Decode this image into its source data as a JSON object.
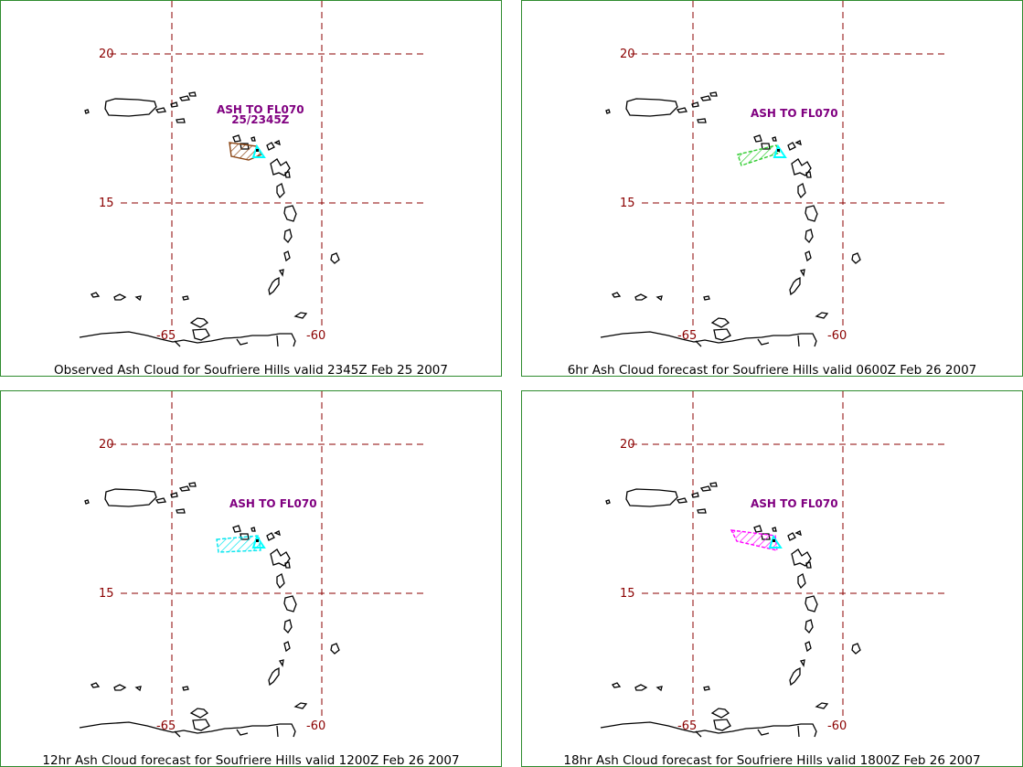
{
  "panels": [
    {
      "caption": "Observed Ash Cloud for Soufriere  Hills valid 2345Z Feb 25 2007",
      "annotation": [
        "ASH TO FL070",
        "25/2345Z"
      ],
      "cloud_color": "#8b4513"
    },
    {
      "caption": "6hr Ash Cloud forecast for Soufriere  Hills valid 0600Z Feb 26 2007",
      "annotation": [
        "ASH TO FL070"
      ],
      "cloud_color": "#32cd32"
    },
    {
      "caption": "12hr Ash Cloud forecast for Soufriere  Hills valid 1200Z Feb 26 2007",
      "annotation": [
        "ASH TO FL070"
      ],
      "cloud_color": "#00e5ee"
    },
    {
      "caption": "18hr Ash Cloud forecast for Soufriere  Hills valid 1800Z Feb 26 2007",
      "annotation": [
        "ASH TO FL070"
      ],
      "cloud_color": "#ff00ff"
    }
  ],
  "grid": {
    "lat_labels": [
      "20",
      "15"
    ],
    "lon_labels": [
      "-65",
      "-60"
    ],
    "color": "#8b0000"
  },
  "volcano_marker_color": "#00ffff",
  "coast_color": "#000000",
  "border_color": "#2e8b2e"
}
